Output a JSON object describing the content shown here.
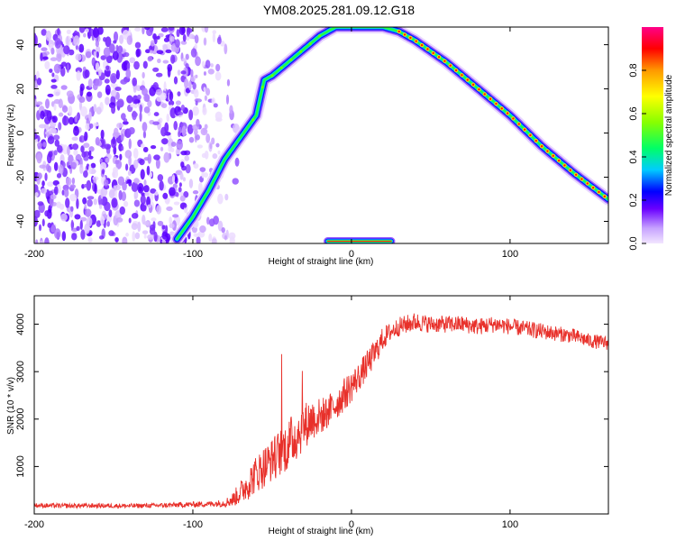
{
  "title": "YM08.2025.281.09.12.G18",
  "chart_data": [
    {
      "type": "heatmap",
      "id": "spectrogram",
      "xlabel": "Height of straight line (km)",
      "ylabel": "Frequency (Hz)",
      "xlim": [
        -200,
        162
      ],
      "ylim": [
        -50,
        48
      ],
      "xticks": [
        -200,
        -100,
        0,
        100
      ],
      "xtick_labels": [
        "-200",
        "-100",
        "0",
        "100"
      ],
      "yticks": [
        -40,
        -20,
        0,
        20,
        40
      ],
      "ytick_labels": [
        "-40",
        "-20",
        "0",
        "20",
        "40"
      ],
      "colorbar": {
        "label": "Normalized spectral amplitude",
        "range": [
          0,
          1
        ],
        "ticks": [
          0.0,
          0.2,
          0.4,
          0.6,
          0.8
        ],
        "tick_labels": [
          "0.0",
          "0.2",
          "0.4",
          "0.6",
          "0.8"
        ]
      },
      "ridge": {
        "x": [
          -110,
          -100,
          -90,
          -80,
          -70,
          -60,
          -55,
          -50,
          -40,
          -30,
          -20,
          -10,
          0,
          10,
          20,
          30,
          40,
          60,
          80,
          100,
          120,
          140,
          162
        ],
        "y": [
          -48,
          -38,
          -26,
          -12,
          -2,
          8,
          24,
          26,
          32,
          38,
          44,
          48,
          48,
          48,
          48,
          46,
          42,
          32,
          20,
          8,
          -6,
          -18,
          -30
        ]
      },
      "noise_region_x": [
        -200,
        -80
      ],
      "dc_line": {
        "x": [
          -15,
          25
        ],
        "y": -49
      }
    },
    {
      "type": "line",
      "id": "snr",
      "xlabel": "Height of straight line (km)",
      "ylabel": "SNR (10 * v/v)",
      "xlim": [
        -200,
        162
      ],
      "ylim": [
        0,
        4600
      ],
      "xticks": [
        -200,
        -100,
        0,
        100
      ],
      "xtick_labels": [
        "-200",
        "-100",
        "0",
        "100"
      ],
      "yticks": [
        1000,
        2000,
        3000,
        4000
      ],
      "ytick_labels": [
        "1000",
        "2000",
        "3000",
        "4000"
      ],
      "series": [
        {
          "name": "SNR",
          "color": "#e8302a",
          "x": [
            -200,
            -180,
            -160,
            -140,
            -120,
            -100,
            -90,
            -80,
            -75,
            -70,
            -65,
            -60,
            -55,
            -50,
            -45,
            -40,
            -35,
            -30,
            -25,
            -20,
            -15,
            -10,
            -5,
            0,
            5,
            10,
            15,
            20,
            25,
            30,
            35,
            40,
            50,
            60,
            70,
            80,
            90,
            100,
            110,
            120,
            130,
            140,
            150,
            162
          ],
          "y": [
            180,
            170,
            175,
            170,
            180,
            200,
            210,
            230,
            300,
            450,
            650,
            850,
            1000,
            1150,
            1300,
            1450,
            1650,
            1850,
            2000,
            2050,
            2150,
            2300,
            2500,
            2700,
            2900,
            3150,
            3400,
            3700,
            3850,
            3950,
            4000,
            4050,
            4000,
            4000,
            4000,
            3950,
            4000,
            3950,
            3900,
            3850,
            3800,
            3750,
            3650,
            3600
          ],
          "noise_amp": [
            50,
            50,
            50,
            50,
            50,
            60,
            60,
            80,
            150,
            250,
            350,
            400,
            450,
            450,
            500,
            550,
            550,
            500,
            450,
            400,
            350,
            350,
            350,
            350,
            300,
            300,
            280,
            250,
            200,
            200,
            200,
            200,
            180,
            180,
            180,
            180,
            180,
            170,
            170,
            170,
            160,
            160,
            150,
            150
          ]
        }
      ]
    }
  ]
}
